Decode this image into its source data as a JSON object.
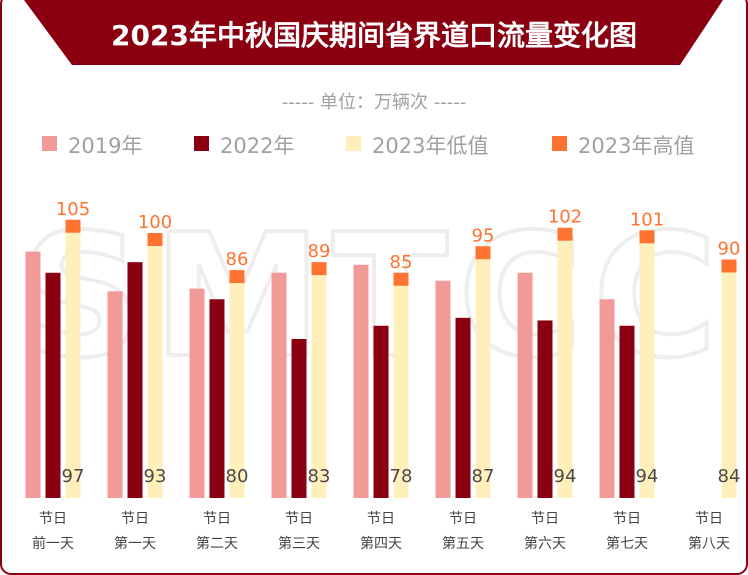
{
  "chart_data": {
    "type": "bar",
    "title": "2023年中秋国庆期间省界道口流量变化图",
    "subtitle": "----- 单位：万辆次 -----",
    "watermark": "SMTCC",
    "legend_position": "top",
    "grid": false,
    "ylim": [
      0,
      110
    ],
    "categories": [
      [
        "节日",
        "前一天"
      ],
      [
        "节日",
        "第一天"
      ],
      [
        "节日",
        "第二天"
      ],
      [
        "节日",
        "第三天"
      ],
      [
        "节日",
        "第四天"
      ],
      [
        "节日",
        "第五天"
      ],
      [
        "节日",
        "第六天"
      ],
      [
        "节日",
        "第七天"
      ],
      [
        "节日",
        "第八天"
      ]
    ],
    "series": [
      {
        "name": "2019年",
        "color": "#F19A97",
        "values": [
          93,
          78,
          79,
          85,
          88,
          82,
          85,
          75,
          null
        ]
      },
      {
        "name": "2022年",
        "color": "#8A0010",
        "values": [
          85,
          89,
          75,
          60,
          65,
          68,
          67,
          65,
          null
        ]
      },
      {
        "name": "2023年低值",
        "color": "#FFF0BB",
        "values": [
          97,
          93,
          80,
          83,
          78,
          87,
          94,
          94,
          84
        ]
      },
      {
        "name": "2023年高值",
        "color": "#FF7331",
        "values": [
          105,
          100,
          86,
          89,
          85,
          95,
          102,
          101,
          90
        ]
      }
    ]
  }
}
